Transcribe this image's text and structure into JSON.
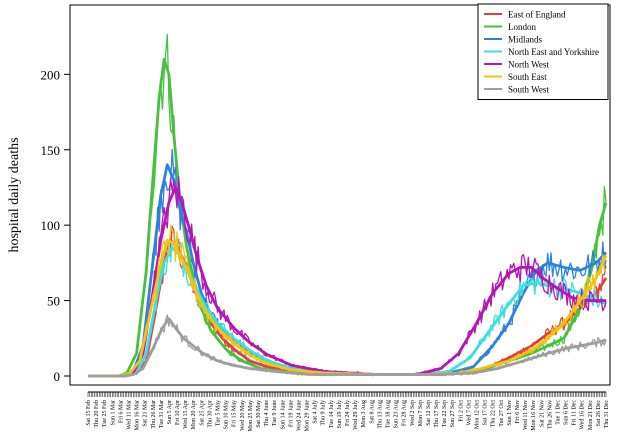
{
  "chart_data": {
    "type": "line",
    "title": "",
    "xlabel": "",
    "ylabel": "hospital daily deaths",
    "ylim": [
      0,
      240
    ],
    "yticks": [
      0,
      50,
      100,
      150,
      200
    ],
    "legend_position": "top-right",
    "x_start": "Sat 15 Feb",
    "x_end": "Thu 31 Dec",
    "x_ticks_labeled": [
      "Sat 15 Feb",
      "Thu 20 Feb",
      "Tue 25 Feb",
      "Sun 1 Mar",
      "Fri 6 Mar",
      "Wed 11 Mar",
      "Mon 16 Mar",
      "Sat 21 Mar",
      "Thu 26 Mar",
      "Tue 31 Mar",
      "Sun 5 Apr",
      "Fri 10 Apr",
      "Wed 15 Apr",
      "Mon 20 Apr",
      "Sat 25 Apr",
      "Thu 30 Apr",
      "Tue 5 May",
      "Sun 10 May",
      "Fri 15 May",
      "Wed 20 May",
      "Mon 25 May",
      "Sat 30 May",
      "Thu 4 June",
      "Tue 9 June",
      "Sun 14 June",
      "Fri 19 June",
      "Wed 24 June",
      "Mon 29 June",
      "Sat 4 July",
      "Thu 9 July",
      "Tue 14 July",
      "Sun 19 July",
      "Fri 24 July",
      "Wed 29 July",
      "Mon 3 Aug",
      "Sat 8 Aug",
      "Thu 13 Aug",
      "Tue 18 Aug",
      "Sun 23 Aug",
      "Fri 28 Aug",
      "Wed 2 Sep",
      "Mon 7 Sep",
      "Sat 12 Sep",
      "Thu 17 Sep",
      "Tue 22 Sep",
      "Sun 27 Sep",
      "Fri 2 Oct",
      "Wed 7 Oct",
      "Mon 12 Oct",
      "Sat 17 Oct",
      "Thu 22 Oct",
      "Tue 27 Oct",
      "Sun 1 Nov",
      "Fri 6 Nov",
      "Wed 11 Nov",
      "Mon 16 Nov",
      "Sat 21 Nov",
      "Thu 26 Nov",
      "Tue 1 Dec",
      "Sun 6 Dec",
      "Fri 11 Dec",
      "Wed 16 Dec",
      "Mon 21 Dec",
      "Sat 26 Dec",
      "Thu 31 Dec"
    ],
    "series": [
      {
        "name": "East of England",
        "color": "#e0413f",
        "points": [
          [
            "2020-02-15",
            0
          ],
          [
            "2020-03-06",
            0
          ],
          [
            "2020-03-16",
            2
          ],
          [
            "2020-03-22",
            10
          ],
          [
            "2020-03-28",
            45
          ],
          [
            "2020-04-02",
            75
          ],
          [
            "2020-04-06",
            90
          ],
          [
            "2020-04-10",
            85
          ],
          [
            "2020-04-15",
            75
          ],
          [
            "2020-04-20",
            60
          ],
          [
            "2020-04-25",
            45
          ],
          [
            "2020-05-01",
            35
          ],
          [
            "2020-05-08",
            25
          ],
          [
            "2020-05-15",
            18
          ],
          [
            "2020-05-25",
            10
          ],
          [
            "2020-06-05",
            6
          ],
          [
            "2020-06-20",
            3
          ],
          [
            "2020-07-05",
            2
          ],
          [
            "2020-08-01",
            1
          ],
          [
            "2020-09-01",
            1
          ],
          [
            "2020-09-20",
            1
          ],
          [
            "2020-10-05",
            2
          ],
          [
            "2020-10-20",
            6
          ],
          [
            "2020-11-01",
            12
          ],
          [
            "2020-11-15",
            20
          ],
          [
            "2020-11-25",
            28
          ],
          [
            "2020-12-05",
            35
          ],
          [
            "2020-12-15",
            45
          ],
          [
            "2020-12-25",
            55
          ],
          [
            "2020-12-31",
            65
          ]
        ]
      },
      {
        "name": "London",
        "color": "#49c13e",
        "points": [
          [
            "2020-02-15",
            0
          ],
          [
            "2020-03-05",
            0
          ],
          [
            "2020-03-10",
            2
          ],
          [
            "2020-03-16",
            15
          ],
          [
            "2020-03-22",
            70
          ],
          [
            "2020-03-26",
            130
          ],
          [
            "2020-03-30",
            185
          ],
          [
            "2020-04-02",
            210
          ],
          [
            "2020-04-05",
            200
          ],
          [
            "2020-04-08",
            160
          ],
          [
            "2020-04-12",
            115
          ],
          [
            "2020-04-16",
            85
          ],
          [
            "2020-04-20",
            65
          ],
          [
            "2020-04-25",
            45
          ],
          [
            "2020-05-01",
            30
          ],
          [
            "2020-05-10",
            18
          ],
          [
            "2020-05-20",
            10
          ],
          [
            "2020-06-01",
            5
          ],
          [
            "2020-06-20",
            2
          ],
          [
            "2020-07-10",
            1
          ],
          [
            "2020-08-10",
            1
          ],
          [
            "2020-09-10",
            1
          ],
          [
            "2020-10-01",
            2
          ],
          [
            "2020-10-15",
            4
          ],
          [
            "2020-11-01",
            10
          ],
          [
            "2020-11-15",
            15
          ],
          [
            "2020-11-25",
            20
          ],
          [
            "2020-12-05",
            25
          ],
          [
            "2020-12-15",
            45
          ],
          [
            "2020-12-22",
            70
          ],
          [
            "2020-12-27",
            100
          ],
          [
            "2020-12-31",
            115
          ]
        ]
      },
      {
        "name": "Midlands",
        "color": "#2c83d8",
        "points": [
          [
            "2020-02-15",
            0
          ],
          [
            "2020-03-08",
            0
          ],
          [
            "2020-03-14",
            3
          ],
          [
            "2020-03-20",
            20
          ],
          [
            "2020-03-26",
            75
          ],
          [
            "2020-03-31",
            120
          ],
          [
            "2020-04-04",
            140
          ],
          [
            "2020-04-08",
            130
          ],
          [
            "2020-04-12",
            110
          ],
          [
            "2020-04-16",
            95
          ],
          [
            "2020-04-20",
            75
          ],
          [
            "2020-04-25",
            55
          ],
          [
            "2020-05-01",
            40
          ],
          [
            "2020-05-10",
            28
          ],
          [
            "2020-05-20",
            18
          ],
          [
            "2020-06-01",
            12
          ],
          [
            "2020-06-15",
            6
          ],
          [
            "2020-07-01",
            3
          ],
          [
            "2020-08-01",
            1
          ],
          [
            "2020-09-01",
            1
          ],
          [
            "2020-09-25",
            2
          ],
          [
            "2020-10-10",
            6
          ],
          [
            "2020-10-22",
            20
          ],
          [
            "2020-11-01",
            35
          ],
          [
            "2020-11-10",
            55
          ],
          [
            "2020-11-18",
            70
          ],
          [
            "2020-11-25",
            75
          ],
          [
            "2020-12-05",
            72
          ],
          [
            "2020-12-15",
            70
          ],
          [
            "2020-12-25",
            75
          ],
          [
            "2020-12-31",
            82
          ]
        ]
      },
      {
        "name": "North East and Yorkshire",
        "color": "#3de0dc",
        "points": [
          [
            "2020-02-15",
            0
          ],
          [
            "2020-03-10",
            0
          ],
          [
            "2020-03-16",
            2
          ],
          [
            "2020-03-22",
            15
          ],
          [
            "2020-03-28",
            50
          ],
          [
            "2020-04-02",
            75
          ],
          [
            "2020-04-07",
            85
          ],
          [
            "2020-04-12",
            80
          ],
          [
            "2020-04-17",
            70
          ],
          [
            "2020-04-22",
            58
          ],
          [
            "2020-04-28",
            45
          ],
          [
            "2020-05-05",
            35
          ],
          [
            "2020-05-15",
            25
          ],
          [
            "2020-05-25",
            17
          ],
          [
            "2020-06-05",
            10
          ],
          [
            "2020-06-20",
            5
          ],
          [
            "2020-07-10",
            2
          ],
          [
            "2020-08-10",
            1
          ],
          [
            "2020-09-10",
            1
          ],
          [
            "2020-09-25",
            3
          ],
          [
            "2020-10-08",
            12
          ],
          [
            "2020-10-20",
            30
          ],
          [
            "2020-11-01",
            48
          ],
          [
            "2020-11-10",
            60
          ],
          [
            "2020-11-18",
            62
          ],
          [
            "2020-11-25",
            60
          ],
          [
            "2020-12-05",
            58
          ],
          [
            "2020-12-15",
            55
          ],
          [
            "2020-12-25",
            50
          ],
          [
            "2020-12-31",
            48
          ]
        ]
      },
      {
        "name": "North West",
        "color": "#b515b5",
        "points": [
          [
            "2020-02-15",
            0
          ],
          [
            "2020-03-08",
            0
          ],
          [
            "2020-03-14",
            2
          ],
          [
            "2020-03-20",
            15
          ],
          [
            "2020-03-26",
            55
          ],
          [
            "2020-03-31",
            90
          ],
          [
            "2020-04-05",
            115
          ],
          [
            "2020-04-09",
            125
          ],
          [
            "2020-04-13",
            115
          ],
          [
            "2020-04-17",
            100
          ],
          [
            "2020-04-22",
            80
          ],
          [
            "2020-04-28",
            60
          ],
          [
            "2020-05-05",
            45
          ],
          [
            "2020-05-15",
            32
          ],
          [
            "2020-05-25",
            22
          ],
          [
            "2020-06-05",
            14
          ],
          [
            "2020-06-20",
            7
          ],
          [
            "2020-07-10",
            3
          ],
          [
            "2020-08-10",
            1
          ],
          [
            "2020-09-05",
            1
          ],
          [
            "2020-09-20",
            5
          ],
          [
            "2020-10-01",
            15
          ],
          [
            "2020-10-12",
            35
          ],
          [
            "2020-10-22",
            55
          ],
          [
            "2020-11-01",
            68
          ],
          [
            "2020-11-08",
            72
          ],
          [
            "2020-11-15",
            72
          ],
          [
            "2020-11-22",
            65
          ],
          [
            "2020-12-01",
            58
          ],
          [
            "2020-12-10",
            52
          ],
          [
            "2020-12-20",
            50
          ],
          [
            "2020-12-31",
            50
          ]
        ]
      },
      {
        "name": "South East",
        "color": "#f2c311",
        "points": [
          [
            "2020-02-15",
            0
          ],
          [
            "2020-03-06",
            0
          ],
          [
            "2020-03-12",
            2
          ],
          [
            "2020-03-18",
            10
          ],
          [
            "2020-03-24",
            40
          ],
          [
            "2020-03-30",
            70
          ],
          [
            "2020-04-04",
            90
          ],
          [
            "2020-04-08",
            88
          ],
          [
            "2020-04-12",
            80
          ],
          [
            "2020-04-17",
            68
          ],
          [
            "2020-04-22",
            55
          ],
          [
            "2020-04-28",
            42
          ],
          [
            "2020-05-05",
            32
          ],
          [
            "2020-05-15",
            22
          ],
          [
            "2020-05-25",
            14
          ],
          [
            "2020-06-05",
            8
          ],
          [
            "2020-06-20",
            4
          ],
          [
            "2020-07-10",
            2
          ],
          [
            "2020-08-10",
            1
          ],
          [
            "2020-09-10",
            1
          ],
          [
            "2020-10-01",
            2
          ],
          [
            "2020-10-15",
            5
          ],
          [
            "2020-11-01",
            10
          ],
          [
            "2020-11-15",
            17
          ],
          [
            "2020-11-25",
            25
          ],
          [
            "2020-12-05",
            35
          ],
          [
            "2020-12-15",
            50
          ],
          [
            "2020-12-25",
            65
          ],
          [
            "2020-12-31",
            80
          ]
        ]
      },
      {
        "name": "South West",
        "color": "#9e9e9e",
        "points": [
          [
            "2020-02-15",
            0
          ],
          [
            "2020-03-08",
            0
          ],
          [
            "2020-03-14",
            1
          ],
          [
            "2020-03-20",
            5
          ],
          [
            "2020-03-26",
            18
          ],
          [
            "2020-04-01",
            32
          ],
          [
            "2020-04-05",
            38
          ],
          [
            "2020-04-09",
            32
          ],
          [
            "2020-04-14",
            25
          ],
          [
            "2020-04-20",
            20
          ],
          [
            "2020-04-26",
            15
          ],
          [
            "2020-05-05",
            10
          ],
          [
            "2020-05-15",
            7
          ],
          [
            "2020-05-25",
            5
          ],
          [
            "2020-06-10",
            3
          ],
          [
            "2020-07-01",
            1
          ],
          [
            "2020-08-01",
            1
          ],
          [
            "2020-09-15",
            1
          ],
          [
            "2020-10-10",
            2
          ],
          [
            "2020-10-25",
            5
          ],
          [
            "2020-11-10",
            10
          ],
          [
            "2020-11-25",
            15
          ],
          [
            "2020-12-05",
            18
          ],
          [
            "2020-12-15",
            20
          ],
          [
            "2020-12-25",
            22
          ],
          [
            "2020-12-31",
            24
          ]
        ]
      }
    ]
  }
}
